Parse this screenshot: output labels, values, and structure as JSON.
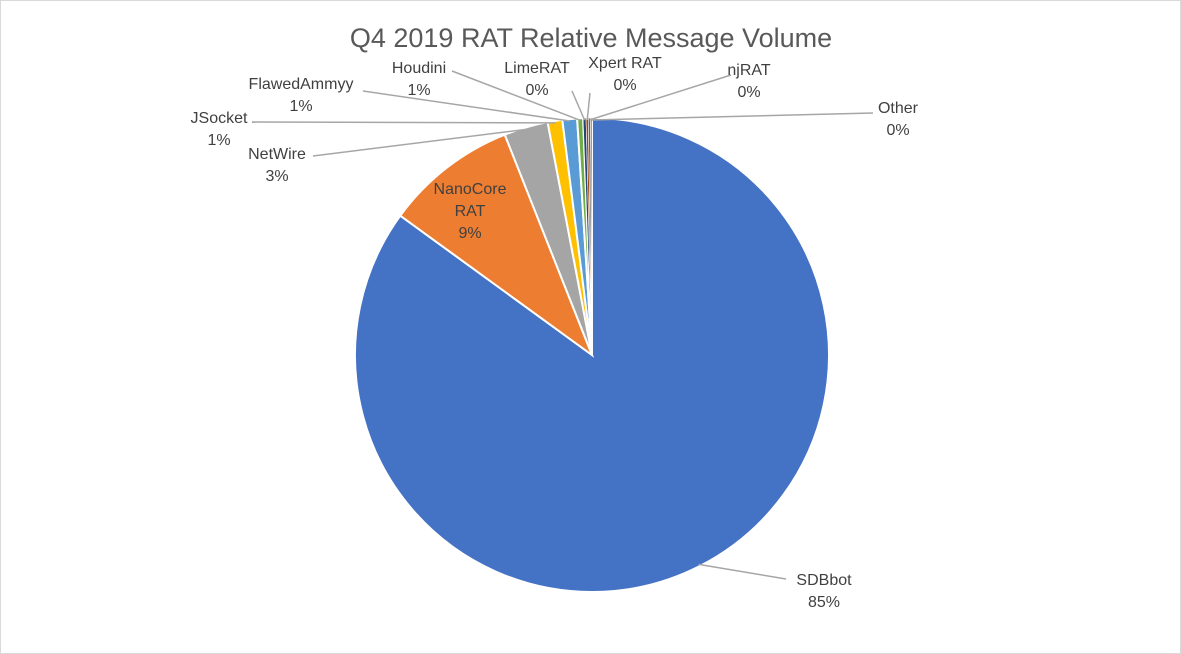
{
  "chart_data": {
    "type": "pie",
    "title": "Q4 2019 RAT Relative Message Volume",
    "slices": [
      {
        "name": "SDBbot",
        "value": 85,
        "label": "85%",
        "color": "#4472C4"
      },
      {
        "name": "NanoCore RAT",
        "value": 9,
        "label": "9%",
        "color": "#ED7D31"
      },
      {
        "name": "NetWire",
        "value": 3,
        "label": "3%",
        "color": "#A5A5A5"
      },
      {
        "name": "JSocket",
        "value": 1,
        "label": "1%",
        "color": "#FFC000"
      },
      {
        "name": "FlawedAmmyy",
        "value": 1,
        "label": "1%",
        "color": "#5B9BD5"
      },
      {
        "name": "Houdini",
        "value": 0.4,
        "label": "1%",
        "color": "#70AD47"
      },
      {
        "name": "LimeRAT",
        "value": 0.2,
        "label": "0%",
        "color": "#264478"
      },
      {
        "name": "Xpert RAT",
        "value": 0.15,
        "label": "0%",
        "color": "#9E480E"
      },
      {
        "name": "njRAT",
        "value": 0.15,
        "label": "0%",
        "color": "#636363"
      },
      {
        "name": "Other",
        "value": 0.1,
        "label": "0%",
        "color": "#997300"
      }
    ],
    "legend": "none"
  }
}
